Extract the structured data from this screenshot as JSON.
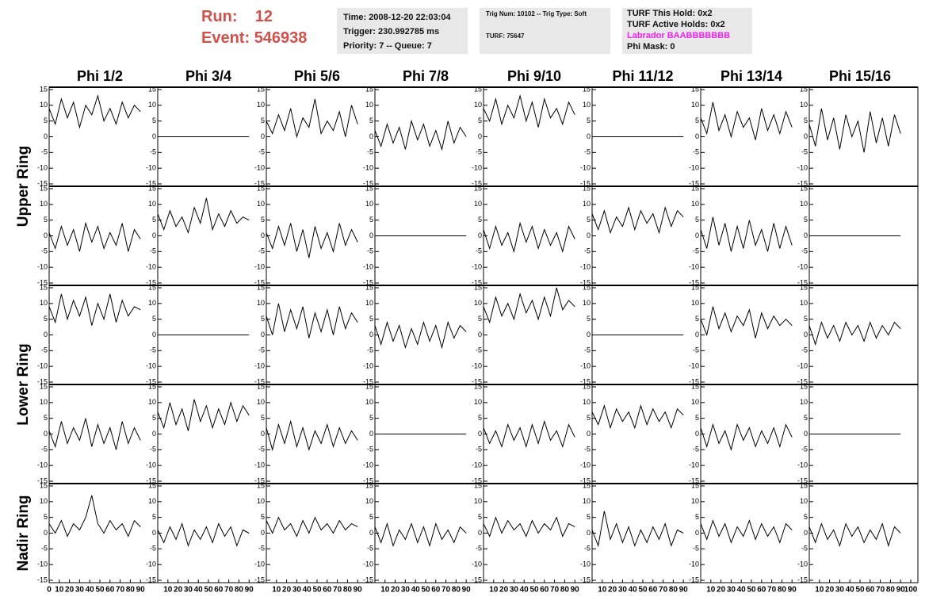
{
  "header": {
    "run_label": "Run:",
    "run": "12",
    "event_label": "Event:",
    "event": "546938",
    "info_boxes": [
      [
        "Time: 2008-12-20 22:03:04",
        "Trigger: 230.992785 ms",
        "Priority: 7 -- Queue: 7"
      ],
      [
        "Trig Num: 10102 -- Trig Type: Soft",
        "TURF: 75647"
      ],
      [
        "TURF This Hold: 0x2",
        "TURF Active Holds: 0x2",
        "Labrador BAABBBBBBB",
        "Phi Mask: 0"
      ]
    ]
  },
  "columns": [
    "Phi 1/2",
    "Phi 3/4",
    "Phi 5/6",
    "Phi 7/8",
    "Phi 9/10",
    "Phi 11/12",
    "Phi 13/14",
    "Phi 15/16"
  ],
  "ring_labels": [
    "Upper Ring",
    "Lower Ring",
    "Nadir Ring"
  ],
  "xlim": [
    0,
    100
  ],
  "xticks": [
    0,
    10,
    20,
    30,
    40,
    50,
    60,
    70,
    80,
    90,
    100
  ],
  "ylim": [
    -15,
    15
  ],
  "yticks": [
    15,
    10,
    5,
    0,
    -5,
    -10,
    -15
  ],
  "x": [
    0,
    6,
    12,
    18,
    24,
    30,
    36,
    42,
    48,
    54,
    60,
    66,
    72,
    78,
    84,
    90
  ],
  "panels": [
    [
      [
        9,
        4,
        12,
        6,
        11,
        3,
        10,
        7,
        13,
        5,
        9,
        4,
        11,
        6,
        10,
        8
      ],
      [
        0,
        0,
        0,
        0,
        0,
        0,
        0,
        0,
        0,
        0,
        0,
        0,
        0,
        0,
        0,
        0
      ],
      [
        5,
        1,
        7,
        2,
        9,
        0,
        6,
        3,
        12,
        1,
        5,
        2,
        8,
        0,
        10,
        4
      ],
      [
        2,
        -3,
        4,
        -2,
        3,
        -4,
        5,
        -1,
        4,
        -3,
        2,
        -4,
        5,
        -2,
        3,
        0
      ],
      [
        9,
        5,
        12,
        4,
        10,
        6,
        13,
        5,
        11,
        3,
        12,
        6,
        9,
        4,
        11,
        7
      ],
      [
        0,
        0,
        0,
        0,
        0,
        0,
        0,
        0,
        0,
        0,
        0,
        0,
        0,
        0,
        0,
        0
      ],
      [
        6,
        1,
        11,
        2,
        7,
        0,
        8,
        3,
        6,
        -1,
        9,
        2,
        7,
        1,
        8,
        3
      ],
      [
        4,
        -3,
        9,
        -1,
        6,
        -4,
        7,
        0,
        5,
        -5,
        8,
        -2,
        6,
        -3,
        7,
        1
      ]
    ],
    [
      [
        1,
        -4,
        3,
        -3,
        2,
        -5,
        4,
        -2,
        3,
        -4,
        1,
        -3,
        4,
        -5,
        2,
        -1
      ],
      [
        7,
        2,
        8,
        3,
        6,
        1,
        9,
        4,
        12,
        2,
        7,
        3,
        8,
        4,
        6,
        5
      ],
      [
        1,
        -4,
        3,
        -3,
        4,
        -5,
        2,
        -7,
        3,
        -4,
        1,
        -5,
        4,
        -3,
        2,
        -2
      ],
      [
        0,
        0,
        0,
        0,
        0,
        0,
        0,
        0,
        0,
        0,
        0,
        0,
        0,
        0,
        0,
        0
      ],
      [
        2,
        -4,
        3,
        -3,
        1,
        -5,
        4,
        -2,
        3,
        -4,
        2,
        -3,
        1,
        -5,
        3,
        -1
      ],
      [
        7,
        2,
        8,
        1,
        6,
        3,
        9,
        2,
        8,
        4,
        7,
        1,
        9,
        3,
        8,
        6
      ],
      [
        2,
        -4,
        6,
        -3,
        4,
        -5,
        3,
        -4,
        5,
        -3,
        2,
        -5,
        4,
        -4,
        3,
        -3
      ],
      [
        0,
        0,
        0,
        0,
        0,
        0,
        0,
        0,
        0,
        0,
        0,
        0,
        0,
        0,
        0,
        0
      ]
    ],
    [
      [
        9,
        4,
        13,
        5,
        11,
        6,
        12,
        3,
        10,
        5,
        13,
        4,
        11,
        6,
        9,
        8
      ],
      [
        0,
        0,
        0,
        0,
        0,
        0,
        0,
        0,
        0,
        0,
        0,
        0,
        0,
        0,
        0,
        0
      ],
      [
        6,
        0,
        10,
        1,
        8,
        2,
        9,
        -1,
        7,
        1,
        8,
        0,
        9,
        2,
        7,
        4
      ],
      [
        3,
        -3,
        4,
        -2,
        3,
        -4,
        2,
        -3,
        4,
        -2,
        3,
        -4,
        4,
        -1,
        3,
        1
      ],
      [
        9,
        4,
        12,
        6,
        10,
        5,
        13,
        7,
        11,
        5,
        12,
        6,
        15,
        8,
        11,
        9
      ],
      [
        0,
        0,
        0,
        0,
        0,
        0,
        0,
        0,
        0,
        0,
        0,
        0,
        0,
        0,
        0,
        0
      ],
      [
        5,
        0,
        9,
        2,
        7,
        1,
        6,
        3,
        8,
        -1,
        7,
        2,
        6,
        3,
        5,
        3
      ],
      [
        3,
        -3,
        4,
        -1,
        3,
        -2,
        4,
        0,
        3,
        -2,
        4,
        -1,
        3,
        0,
        4,
        2
      ]
    ],
    [
      [
        1,
        -4,
        4,
        -3,
        2,
        -2,
        5,
        -4,
        3,
        -3,
        2,
        -5,
        4,
        -3,
        2,
        -2
      ],
      [
        7,
        2,
        10,
        3,
        8,
        1,
        11,
        4,
        9,
        2,
        8,
        3,
        10,
        4,
        9,
        6
      ],
      [
        2,
        -5,
        3,
        -3,
        4,
        -4,
        2,
        -5,
        1,
        -3,
        3,
        -4,
        2,
        -3,
        1,
        -2
      ],
      [
        0,
        0,
        0,
        0,
        0,
        0,
        0,
        0,
        0,
        0,
        0,
        0,
        0,
        0,
        0,
        0
      ],
      [
        2,
        -3,
        1,
        -4,
        3,
        -2,
        2,
        -4,
        3,
        -3,
        4,
        -2,
        1,
        -4,
        3,
        -1
      ],
      [
        7,
        3,
        9,
        2,
        8,
        4,
        7,
        2,
        9,
        3,
        8,
        4,
        7,
        2,
        8,
        6
      ],
      [
        2,
        -4,
        3,
        -3,
        1,
        -5,
        3,
        -2,
        2,
        -4,
        1,
        -3,
        2,
        -4,
        3,
        -1
      ],
      [
        0,
        0,
        0,
        0,
        0,
        0,
        0,
        0,
        0,
        0,
        0,
        0,
        0,
        0,
        0,
        0
      ]
    ],
    [
      [
        3,
        0,
        4,
        -1,
        3,
        1,
        5,
        12,
        3,
        0,
        4,
        1,
        3,
        -1,
        4,
        2
      ],
      [
        1,
        -3,
        2,
        -2,
        3,
        -4,
        1,
        -2,
        2,
        -3,
        3,
        -1,
        2,
        -4,
        1,
        0
      ],
      [
        4,
        0,
        5,
        1,
        3,
        -1,
        4,
        0,
        5,
        1,
        3,
        0,
        4,
        1,
        3,
        2
      ],
      [
        2,
        -3,
        3,
        -4,
        1,
        -2,
        3,
        -3,
        2,
        -4,
        3,
        -2,
        1,
        -3,
        2,
        0
      ],
      [
        3,
        -1,
        5,
        0,
        4,
        1,
        3,
        -1,
        4,
        0,
        3,
        1,
        5,
        -1,
        3,
        2
      ],
      [
        1,
        -4,
        7,
        -2,
        3,
        -3,
        2,
        -4,
        1,
        -3,
        2,
        -2,
        3,
        -4,
        1,
        0
      ],
      [
        3,
        -2,
        4,
        -1,
        3,
        -3,
        2,
        -1,
        4,
        -2,
        3,
        -1,
        2,
        -3,
        3,
        1
      ],
      [
        2,
        -3,
        3,
        -2,
        1,
        -4,
        3,
        -1,
        2,
        -3,
        1,
        -2,
        3,
        -4,
        2,
        0
      ]
    ]
  ]
}
